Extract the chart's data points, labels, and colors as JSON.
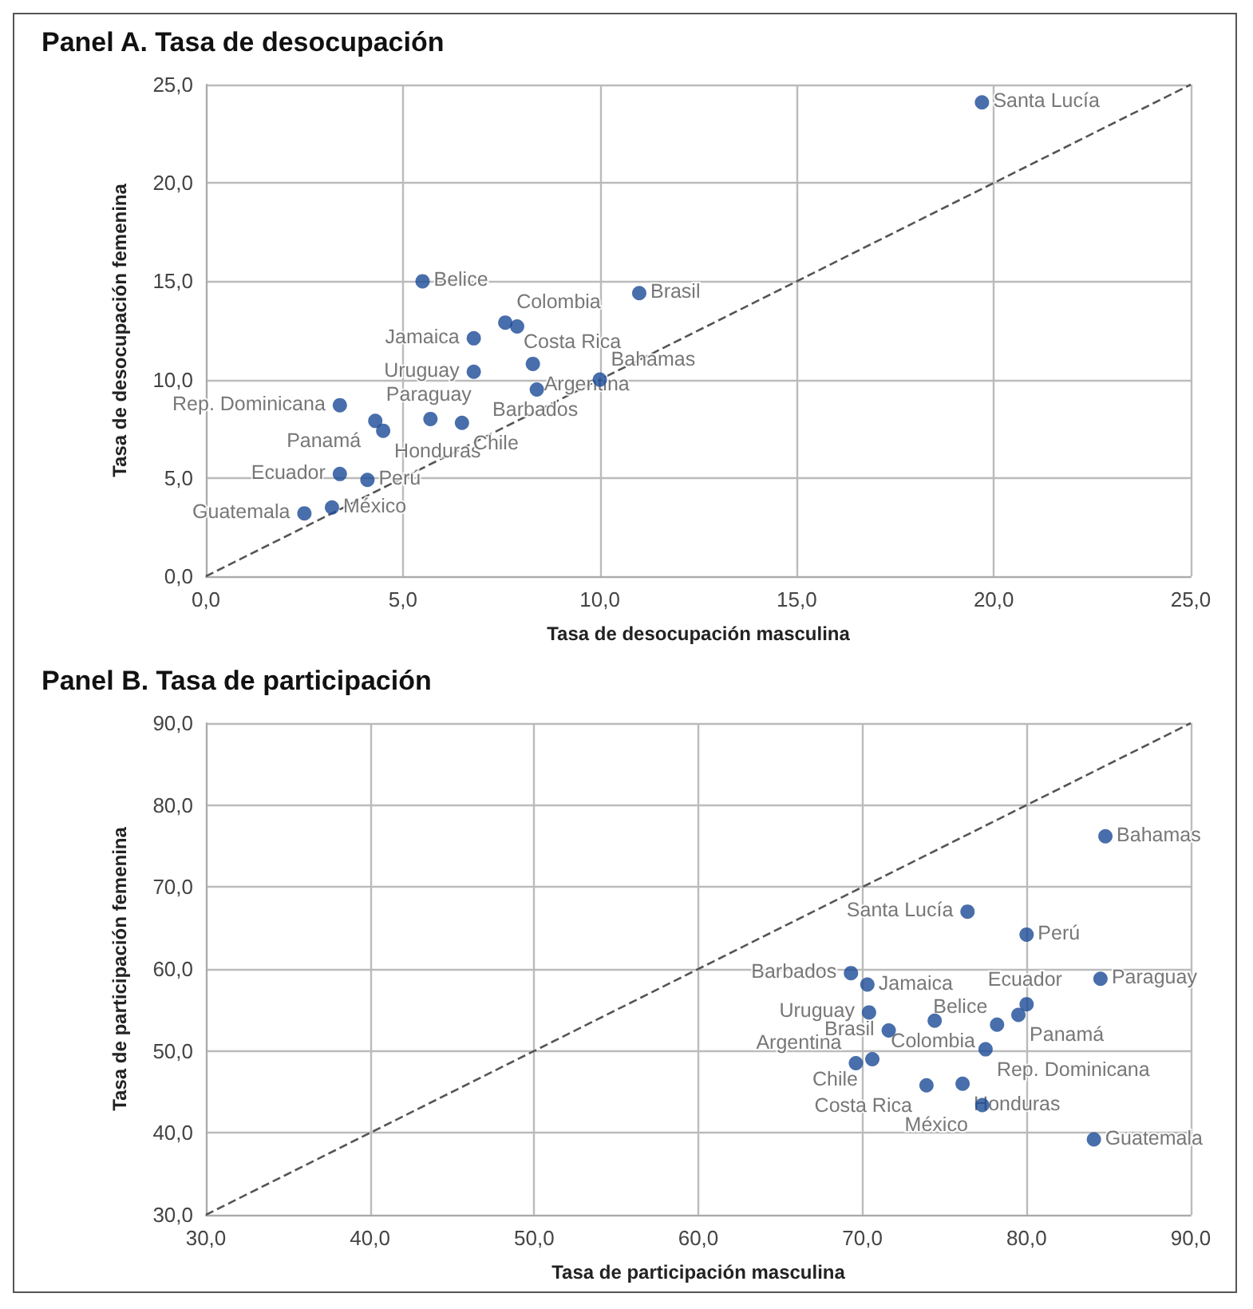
{
  "chart_data": [
    {
      "type": "scatter",
      "title": "Panel A. Tasa de desocupación",
      "xlabel": "Tasa de desocupación masculina",
      "ylabel": "Tasa de desocupación femenina",
      "xlim": [
        0,
        25
      ],
      "ylim": [
        0,
        25
      ],
      "xticks": [
        {
          "value": 0,
          "label": "0,0"
        },
        {
          "value": 5,
          "label": "5,0"
        },
        {
          "value": 10,
          "label": "10,0"
        },
        {
          "value": 15,
          "label": "15,0"
        },
        {
          "value": 20,
          "label": "20,0"
        },
        {
          "value": 25,
          "label": "25,0"
        }
      ],
      "yticks": [
        {
          "value": 0,
          "label": "0,0"
        },
        {
          "value": 5,
          "label": "5,0"
        },
        {
          "value": 10,
          "label": "10,0"
        },
        {
          "value": 15,
          "label": "15,0"
        },
        {
          "value": 20,
          "label": "20,0"
        },
        {
          "value": 25,
          "label": "25,0"
        }
      ],
      "grid": true,
      "marker": "circle",
      "series": [
        {
          "color": "#1a4a96",
          "x": [
            5.5,
            7.6,
            7.9,
            6.8,
            6.8,
            8.3,
            10.0,
            8.4,
            3.4,
            4.3,
            4.5,
            5.7,
            6.5,
            3.4,
            4.1,
            3.2,
            2.5,
            11.0,
            19.7
          ],
          "values": [
            15.0,
            12.9,
            12.7,
            12.1,
            10.4,
            10.8,
            10.0,
            9.5,
            8.7,
            7.9,
            7.4,
            8.0,
            7.8,
            5.2,
            4.9,
            3.5,
            3.2,
            14.4,
            24.1
          ]
        },
        {
          "type": "line",
          "color": "#555555",
          "line_style": "dashed",
          "marker": "none",
          "x": [
            0,
            25
          ],
          "values": [
            0,
            25
          ]
        }
      ],
      "annotations": [
        {
          "text": "Belice",
          "x": 5.5,
          "y": 15.0
        },
        {
          "text": "Colombia",
          "x": 7.6,
          "y": 12.9
        },
        {
          "text": "Costa Rica",
          "x": 7.9,
          "y": 12.7
        },
        {
          "text": "Jamaica",
          "x": 6.8,
          "y": 12.1
        },
        {
          "text": "Uruguay",
          "x": 6.8,
          "y": 10.4
        },
        {
          "text": "Argentina",
          "x": 8.3,
          "y": 10.8
        },
        {
          "text": "Bahamas",
          "x": 10.0,
          "y": 10.0
        },
        {
          "text": "Barbados",
          "x": 8.4,
          "y": 9.5
        },
        {
          "text": "Rep. Dominicana",
          "x": 3.4,
          "y": 8.7
        },
        {
          "text": "Panamá",
          "x": 4.3,
          "y": 7.9
        },
        {
          "text": "Honduras",
          "x": 4.5,
          "y": 7.4
        },
        {
          "text": "Paraguay",
          "x": 5.7,
          "y": 8.0
        },
        {
          "text": "Chile",
          "x": 6.5,
          "y": 7.8
        },
        {
          "text": "Ecuador",
          "x": 3.4,
          "y": 5.2
        },
        {
          "text": "Perú",
          "x": 4.1,
          "y": 4.9
        },
        {
          "text": "México",
          "x": 3.2,
          "y": 3.5
        },
        {
          "text": "Guatemala",
          "x": 2.5,
          "y": 3.2
        },
        {
          "text": "Brasil",
          "x": 11.0,
          "y": 14.4
        },
        {
          "text": "Santa Lucía",
          "x": 19.7,
          "y": 24.1
        }
      ]
    },
    {
      "type": "scatter",
      "title": "Panel B. Tasa de participación",
      "xlabel": "Tasa de participación masculina",
      "ylabel": "Tasa de participación femenina",
      "xlim": [
        30,
        90
      ],
      "ylim": [
        30,
        90
      ],
      "xticks": [
        {
          "value": 30,
          "label": "30,0"
        },
        {
          "value": 40,
          "label": "40,0"
        },
        {
          "value": 50,
          "label": "50,0"
        },
        {
          "value": 60,
          "label": "60,0"
        },
        {
          "value": 70,
          "label": "70,0"
        },
        {
          "value": 80,
          "label": "80,0"
        },
        {
          "value": 90,
          "label": "90,0"
        }
      ],
      "yticks": [
        {
          "value": 30,
          "label": "30,0"
        },
        {
          "value": 40,
          "label": "40,0"
        },
        {
          "value": 50,
          "label": "50,0"
        },
        {
          "value": 60,
          "label": "60,0"
        },
        {
          "value": 70,
          "label": "70,0"
        },
        {
          "value": 80,
          "label": "80,0"
        },
        {
          "value": 90,
          "label": "90,0"
        }
      ],
      "grid": true,
      "marker": "circle",
      "series": [
        {
          "color": "#1a4a96",
          "x": [
            84.8,
            76.4,
            80.0,
            69.3,
            84.5,
            70.3,
            80.0,
            70.4,
            79.5,
            74.4,
            78.2,
            71.6,
            77.5,
            70.6,
            69.6,
            73.9,
            76.1,
            77.3,
            84.1
          ],
          "values": [
            76.2,
            67.0,
            64.2,
            59.5,
            58.8,
            58.1,
            55.7,
            54.7,
            54.4,
            53.7,
            53.2,
            52.5,
            50.2,
            49.0,
            48.5,
            45.8,
            46.0,
            43.4,
            39.2
          ]
        },
        {
          "type": "line",
          "color": "#555555",
          "line_style": "dashed",
          "marker": "none",
          "x": [
            30,
            90
          ],
          "values": [
            30,
            90
          ]
        }
      ],
      "annotations": [
        {
          "text": "Bahamas",
          "x": 84.8,
          "y": 76.2
        },
        {
          "text": "Santa Lucía",
          "x": 76.4,
          "y": 67.0
        },
        {
          "text": "Perú",
          "x": 80.0,
          "y": 64.2
        },
        {
          "text": "Barbados",
          "x": 69.3,
          "y": 59.5
        },
        {
          "text": "Paraguay",
          "x": 84.5,
          "y": 58.8
        },
        {
          "text": "Jamaica",
          "x": 70.3,
          "y": 58.1
        },
        {
          "text": "Ecuador",
          "x": 80.0,
          "y": 55.7
        },
        {
          "text": "Uruguay",
          "x": 70.4,
          "y": 54.7
        },
        {
          "text": "Panamá",
          "x": 79.5,
          "y": 54.4
        },
        {
          "text": "Colombia",
          "x": 74.4,
          "y": 53.7
        },
        {
          "text": "Belice",
          "x": 78.2,
          "y": 53.2
        },
        {
          "text": "Brasil",
          "x": 71.6,
          "y": 52.5
        },
        {
          "text": "Rep. Dominicana",
          "x": 77.5,
          "y": 50.2
        },
        {
          "text": "Chile",
          "x": 70.6,
          "y": 49.0
        },
        {
          "text": "Argentina",
          "x": 69.6,
          "y": 48.5
        },
        {
          "text": "Costa Rica",
          "x": 73.9,
          "y": 45.8
        },
        {
          "text": "Honduras",
          "x": 76.1,
          "y": 46.0
        },
        {
          "text": "México",
          "x": 77.3,
          "y": 43.4
        },
        {
          "text": "Guatemala",
          "x": 84.1,
          "y": 39.2
        }
      ]
    }
  ]
}
